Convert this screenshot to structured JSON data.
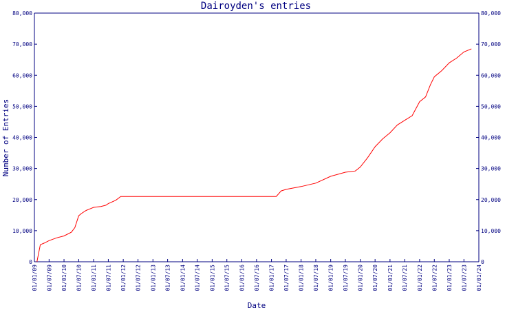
{
  "chart_data": {
    "type": "line",
    "title": "Dairoyden's entries",
    "xlabel": "Date",
    "ylabel": "Number of Entries",
    "grid": false,
    "legend": "none",
    "colors": {
      "axis": "#000080",
      "series": "#ff0000"
    },
    "xlim": [
      "2009-01-01",
      "2024-01-01"
    ],
    "ylim": [
      0,
      80000
    ],
    "y_ticks": [
      0,
      10000,
      20000,
      30000,
      40000,
      50000,
      60000,
      70000,
      80000
    ],
    "y_tick_labels": [
      "0",
      "10,000",
      "20,000",
      "30,000",
      "40,000",
      "50,000",
      "60,000",
      "70,000",
      "80,000"
    ],
    "x_ticks": [
      "2009-01-01",
      "2009-07-01",
      "2010-01-01",
      "2010-07-01",
      "2011-01-01",
      "2011-07-01",
      "2012-01-01",
      "2012-07-01",
      "2013-01-01",
      "2013-07-01",
      "2014-01-01",
      "2014-07-01",
      "2015-01-01",
      "2015-07-01",
      "2016-01-01",
      "2016-07-01",
      "2017-01-01",
      "2017-07-01",
      "2018-01-01",
      "2018-07-01",
      "2019-01-01",
      "2019-07-01",
      "2020-01-01",
      "2020-07-01",
      "2021-01-01",
      "2021-07-01",
      "2022-01-01",
      "2022-07-01",
      "2023-01-01",
      "2023-07-01",
      "2024-01-01"
    ],
    "x_tick_labels": [
      "01/01/09",
      "01/07/09",
      "01/01/10",
      "01/07/10",
      "01/01/11",
      "01/07/11",
      "01/01/12",
      "01/07/12",
      "01/01/13",
      "01/07/13",
      "01/01/14",
      "01/07/14",
      "01/01/15",
      "01/07/15",
      "01/01/16",
      "01/07/16",
      "01/01/17",
      "01/07/17",
      "01/01/18",
      "01/07/18",
      "01/01/19",
      "01/07/19",
      "01/01/20",
      "01/07/20",
      "01/01/21",
      "01/07/21",
      "01/01/22",
      "01/07/22",
      "01/01/23",
      "01/07/23",
      "01/01/24"
    ],
    "series": [
      {
        "x": [
          "2009-02-01",
          "2009-03-15",
          "2009-05-01",
          "2009-07-01",
          "2009-10-01",
          "2010-01-01",
          "2010-04-01",
          "2010-05-15",
          "2010-07-01",
          "2010-08-01",
          "2010-10-01",
          "2011-01-01",
          "2011-04-01",
          "2011-06-01",
          "2011-07-01",
          "2011-10-01",
          "2011-12-01",
          "2012-01-15",
          "2012-03-01",
          "2012-06-01",
          "2013-01-01",
          "2014-01-01",
          "2015-01-01",
          "2016-01-01",
          "2017-01-01",
          "2017-03-01",
          "2017-05-01",
          "2017-07-01",
          "2018-01-01",
          "2018-07-01",
          "2019-01-01",
          "2019-07-01",
          "2019-11-01",
          "2020-01-01",
          "2020-04-01",
          "2020-07-01",
          "2020-10-01",
          "2021-01-01",
          "2021-04-01",
          "2021-07-01",
          "2021-10-01",
          "2022-01-01",
          "2022-03-15",
          "2022-05-15",
          "2022-07-01",
          "2022-10-01",
          "2023-01-01",
          "2023-04-01",
          "2023-07-01",
          "2023-10-01"
        ],
        "y": [
          0,
          5500,
          6000,
          6800,
          7700,
          8300,
          9500,
          11000,
          14800,
          15500,
          16500,
          17500,
          17800,
          18200,
          18700,
          19800,
          21000,
          21000,
          21000,
          21000,
          21000,
          21000,
          21000,
          21000,
          21000,
          21000,
          22800,
          23300,
          24200,
          25300,
          27500,
          28800,
          29200,
          30500,
          33500,
          37000,
          39500,
          41500,
          44000,
          45500,
          47000,
          51500,
          53000,
          57000,
          59500,
          61500,
          64000,
          65500,
          67500,
          68500
        ]
      }
    ]
  }
}
